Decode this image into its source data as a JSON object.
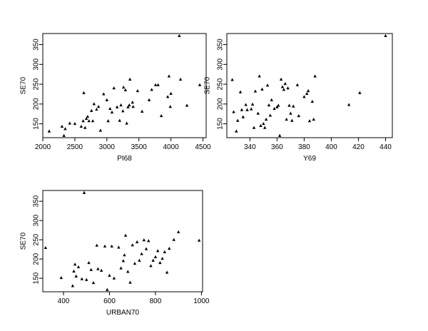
{
  "chart_data": [
    {
      "type": "scatter",
      "xlabel": "PI68",
      "ylabel": "SE70",
      "xlim": [
        2000,
        4550
      ],
      "ylim": [
        115,
        378
      ],
      "xticks": [
        2000,
        2500,
        3000,
        3500,
        4000,
        4500
      ],
      "yticks": [
        150,
        200,
        250,
        300,
        350
      ],
      "grid": false,
      "marker": "triangle",
      "x": [
        2100,
        2300,
        2330,
        2350,
        2420,
        2500,
        2600,
        2630,
        2640,
        2660,
        2680,
        2700,
        2720,
        2760,
        2780,
        2800,
        2840,
        2870,
        2900,
        2950,
        3000,
        3020,
        3050,
        3080,
        3110,
        3160,
        3200,
        3220,
        3250,
        3260,
        3290,
        3310,
        3330,
        3350,
        3360,
        3400,
        3410,
        3480,
        3550,
        3660,
        3700,
        3760,
        3800,
        3850,
        3950,
        3970,
        3990,
        4000,
        4130,
        4150,
        4250,
        4450
      ],
      "y": [
        131,
        143,
        120,
        137,
        151,
        150,
        143,
        157,
        228,
        140,
        163,
        168,
        157,
        183,
        157,
        200,
        186,
        193,
        133,
        225,
        210,
        157,
        188,
        179,
        240,
        192,
        158,
        197,
        182,
        242,
        235,
        151,
        192,
        197,
        262,
        204,
        193,
        233,
        181,
        210,
        236,
        248,
        248,
        170,
        218,
        270,
        193,
        226,
        372,
        262,
        196,
        248
      ]
    },
    {
      "type": "scatter",
      "xlabel": "Y69",
      "ylabel": "SE70",
      "xlim": [
        323,
        445
      ],
      "ylim": [
        115,
        378
      ],
      "xticks": [
        340,
        360,
        380,
        400,
        420,
        440
      ],
      "yticks": [
        150,
        200,
        250,
        300,
        350
      ],
      "grid": false,
      "marker": "triangle",
      "x": [
        327,
        328,
        330,
        331,
        333,
        334,
        335,
        337,
        338,
        341,
        342,
        343,
        344,
        346,
        347,
        348,
        349,
        350,
        351,
        352,
        353,
        354,
        355,
        356,
        358,
        360,
        361,
        362,
        363,
        364,
        365,
        366,
        367,
        368,
        369,
        370,
        371,
        372,
        375,
        376,
        380,
        382,
        383,
        384,
        386,
        387,
        388,
        413,
        421,
        440
      ],
      "y": [
        261,
        180,
        131,
        158,
        230,
        185,
        167,
        198,
        185,
        187,
        199,
        140,
        232,
        176,
        270,
        145,
        237,
        150,
        140,
        161,
        247,
        197,
        171,
        210,
        188,
        192,
        196,
        120,
        262,
        243,
        236,
        251,
        161,
        240,
        196,
        176,
        158,
        194,
        248,
        170,
        218,
        226,
        233,
        157,
        206,
        161,
        270,
        198,
        228,
        372
      ]
    },
    {
      "type": "scatter",
      "xlabel": "URBAN70",
      "ylabel": "SE70",
      "xlim": [
        310,
        1005
      ],
      "ylim": [
        115,
        378
      ],
      "xticks": [
        400,
        600,
        800,
        1000
      ],
      "yticks": [
        150,
        200,
        250,
        300,
        350
      ],
      "grid": false,
      "marker": "triangle",
      "x": [
        322,
        390,
        440,
        445,
        450,
        455,
        465,
        480,
        490,
        500,
        510,
        520,
        530,
        545,
        550,
        565,
        580,
        590,
        600,
        610,
        620,
        640,
        650,
        660,
        665,
        670,
        680,
        690,
        700,
        710,
        720,
        730,
        740,
        750,
        760,
        770,
        780,
        790,
        800,
        810,
        820,
        830,
        840,
        850,
        860,
        880,
        900,
        990
      ],
      "y": [
        229,
        151,
        130,
        168,
        186,
        155,
        179,
        148,
        372,
        146,
        190,
        172,
        138,
        235,
        174,
        170,
        233,
        120,
        157,
        233,
        150,
        230,
        176,
        195,
        210,
        261,
        167,
        139,
        236,
        188,
        244,
        196,
        213,
        249,
        226,
        247,
        182,
        196,
        205,
        221,
        190,
        201,
        218,
        165,
        227,
        250,
        270,
        248
      ]
    }
  ]
}
